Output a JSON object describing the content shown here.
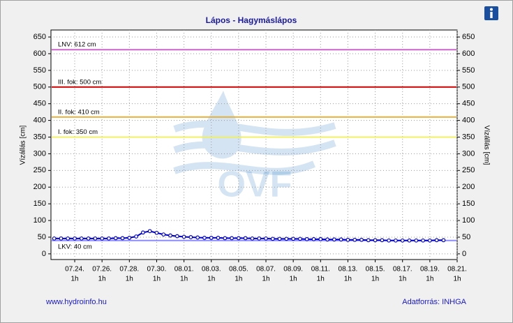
{
  "chart_data": {
    "type": "line",
    "title": "Lápos - Hagymáslápos",
    "y_label": "Vízállás [cm]",
    "y2_label": "Vízállás [cm]",
    "watermark": "OVF",
    "footer_left": "www.hydroinfo.hu",
    "footer_right": "Adatforrás: INHGA",
    "x_tick_sublabel": "1h",
    "categories": [
      null,
      null,
      null,
      "07.24.",
      null,
      null,
      null,
      "07.26.",
      null,
      null,
      null,
      "07.28.",
      null,
      null,
      null,
      "07.30.",
      null,
      null,
      null,
      "08.01.",
      null,
      null,
      null,
      "08.03.",
      null,
      null,
      null,
      "08.05.",
      null,
      null,
      null,
      "08.07.",
      null,
      null,
      null,
      "08.09.",
      null,
      null,
      null,
      "08.11.",
      null,
      null,
      null,
      "08.13.",
      null,
      null,
      null,
      "08.15.",
      null,
      null,
      null,
      "08.17.",
      null,
      null,
      null,
      "08.19.",
      null,
      null,
      null,
      "08.21."
    ],
    "series": [
      {
        "color": "#0000cc",
        "values": [
          46,
          46,
          46,
          46,
          46,
          46,
          46,
          46,
          46,
          47,
          47,
          48,
          52,
          64,
          68,
          63,
          58,
          55,
          53,
          51,
          50,
          49,
          48,
          48,
          48,
          47,
          47,
          47,
          47,
          46,
          46,
          46,
          45,
          45,
          45,
          45,
          45,
          44,
          44,
          44,
          43,
          43,
          43,
          42,
          42,
          42,
          41,
          41,
          41,
          40,
          40,
          40,
          40,
          40,
          40,
          40,
          41,
          41,
          null,
          null
        ]
      }
    ],
    "thresholds": [
      {
        "label": "LNV: 612 cm",
        "value": 612,
        "color": "#cc66cc"
      },
      {
        "label": "III. fok: 500 cm",
        "value": 500,
        "color": "#cc0000"
      },
      {
        "label": "II. fok: 410 cm",
        "value": 410,
        "color": "#e0b040"
      },
      {
        "label": "I. fok: 350 cm",
        "value": 350,
        "color": "#f0f060"
      },
      {
        "label": "LKV: 40 cm",
        "value": 40,
        "color": "#8c8cff"
      }
    ],
    "ylim": [
      -17,
      671
    ],
    "yticks": [
      0,
      50,
      100,
      150,
      200,
      250,
      300,
      350,
      400,
      450,
      500,
      550,
      600,
      650
    ],
    "grid": true
  }
}
